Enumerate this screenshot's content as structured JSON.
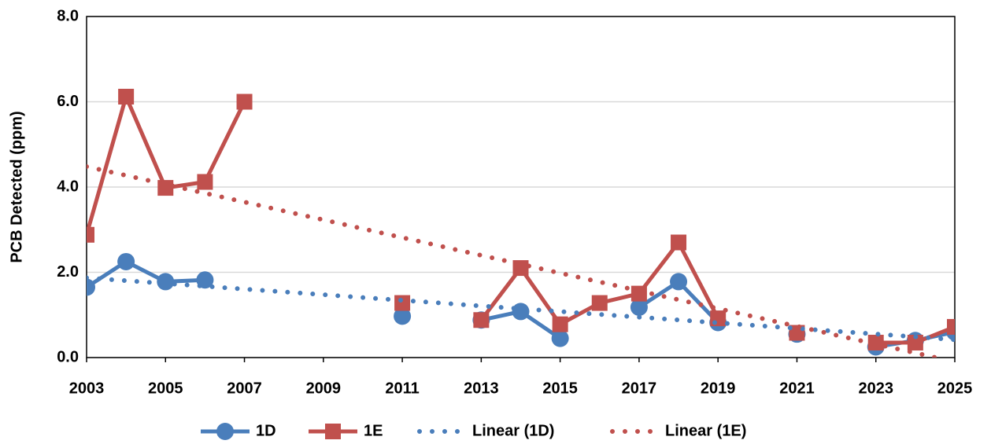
{
  "chart_data": {
    "type": "line",
    "ylabel": "PCB Detected (ppm)",
    "x": [
      2003,
      2004,
      2005,
      2006,
      2007,
      2008,
      2009,
      2010,
      2011,
      2012,
      2013,
      2014,
      2015,
      2016,
      2017,
      2018,
      2019,
      2020,
      2021,
      2022,
      2023,
      2024,
      2025
    ],
    "series": [
      {
        "name": "1D",
        "color": "#4a7ebb",
        "marker": "circle",
        "values": [
          1.65,
          2.25,
          1.78,
          1.82,
          null,
          null,
          null,
          null,
          0.97,
          null,
          0.88,
          1.08,
          0.45,
          null,
          1.18,
          1.78,
          0.82,
          null,
          0.55,
          null,
          0.25,
          0.4,
          0.6
        ]
      },
      {
        "name": "1E",
        "color": "#c0504d",
        "marker": "square",
        "values": [
          2.88,
          6.12,
          3.98,
          4.12,
          6.0,
          null,
          null,
          null,
          1.28,
          null,
          0.88,
          2.1,
          0.78,
          1.28,
          1.5,
          2.7,
          0.92,
          null,
          0.58,
          null,
          0.35,
          0.35,
          0.72
        ]
      },
      {
        "name": "Linear (1D)",
        "color": "#4a7ebb",
        "dotted": true,
        "x": [
          2003,
          2025
        ],
        "values": [
          1.87,
          0.42
        ]
      },
      {
        "name": "Linear (1E)",
        "color": "#c0504d",
        "dotted": true,
        "x": [
          2003,
          2025
        ],
        "values": [
          4.48,
          -0.1
        ]
      }
    ],
    "xlim": [
      2003,
      2025
    ],
    "xticks": [
      2003,
      2005,
      2007,
      2009,
      2011,
      2013,
      2015,
      2017,
      2019,
      2021,
      2023,
      2025
    ],
    "ylim": [
      0,
      8
    ],
    "yticks": [
      {
        "value": 0,
        "label": "0.0"
      },
      {
        "value": 2,
        "label": "2.0"
      },
      {
        "value": 4,
        "label": "4.0"
      },
      {
        "value": 6,
        "label": "6.0"
      },
      {
        "value": 8,
        "label": "8.0"
      }
    ],
    "grid": true,
    "legend": "bottom"
  }
}
